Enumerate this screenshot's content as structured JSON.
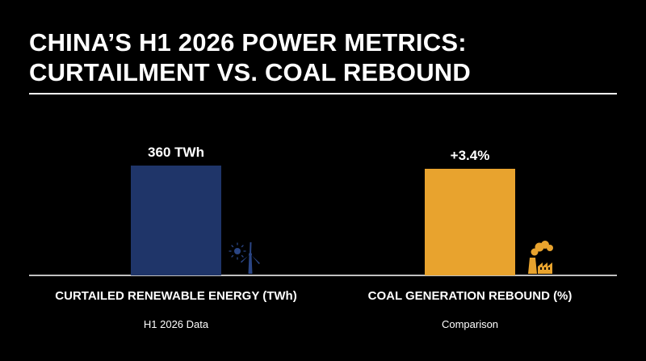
{
  "chart_data": {
    "type": "bar",
    "title_lines": [
      "CHINA’S H1 2026 POWER METRICS:",
      "CURTAILMENT VS. COAL REBOUND"
    ],
    "colors": {
      "background": "#000000",
      "text": "#ffffff",
      "renewable_bar": "#1f3569",
      "coal_bar": "#e8a32e"
    },
    "bars": [
      {
        "category": "CURTAILED RENEWABLE ENERGY (TWh)",
        "sublabel": "H1 2026 Data",
        "value": 360,
        "unit": "TWh",
        "value_label": "360 TWh",
        "color": "#1f3569",
        "icon": "wind-turbine-and-sun-icon"
      },
      {
        "category": "COAL GENERATION REBOUND (%)",
        "sublabel": "Comparison",
        "value": 3.4,
        "unit": "%",
        "value_label": "+3.4%",
        "color": "#e8a32e",
        "icon": "coal-power-plant-icon"
      }
    ],
    "axes": "separate scales per bar; no axis ticks shown",
    "grid": false,
    "legend": "none"
  }
}
